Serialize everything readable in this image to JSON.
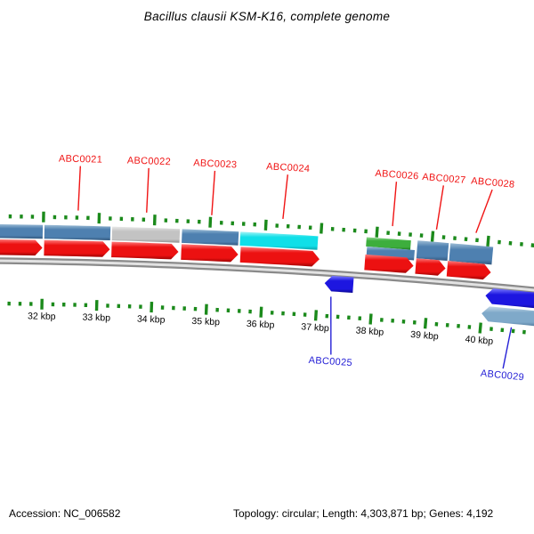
{
  "title": "Bacillus clausii KSM-K16, complete genome",
  "footer": {
    "accession": "Accession: NC_006582",
    "info": "Topology: circular; Length: 4,303,871 bp; Genes: 4,192"
  },
  "chart_data": {
    "type": "genome-map",
    "subtype": "circular-genome-arc-zoom",
    "accession": "NC_006582",
    "topology": "circular",
    "length_bp": 4303871,
    "genes_total": 4192,
    "visible_range_kbp": [
      31.23,
      40.9
    ],
    "ruler": {
      "unit": "kbp",
      "major_positions_kbp": [
        32,
        33,
        34,
        35,
        36,
        37,
        38,
        39,
        40
      ],
      "major_labels": [
        "32 kbp",
        "33 kbp",
        "34 kbp",
        "35 kbp",
        "36 kbp",
        "37 kbp",
        "38 kbp",
        "39 kbp",
        "40 kbp"
      ],
      "minor_interval_kbp": 0.2,
      "minor_start_kbp": 31.4,
      "minor_end_kbp": 40.8
    },
    "colors": {
      "background": "#ffffff",
      "tick": "#1b8a1b",
      "scale_text": "#000000",
      "label_top": "#f01414",
      "label_bottom": "#2621d6",
      "backbone_outer": "#8a8a8a",
      "backbone_core": "#e2e2e2",
      "features": {
        "steel": {
          "light": "#9dbdd6",
          "base": "#4e80b0",
          "dark": "#33587e"
        },
        "steelLight": {
          "light": "#c3d8e8",
          "base": "#7fa9c9",
          "dark": "#50799c"
        },
        "gray": {
          "light": "#e9e9e9",
          "base": "#c3c3c3",
          "dark": "#8f8f8f"
        },
        "cyan": {
          "light": "#a8f4f6",
          "base": "#10dfe8",
          "dark": "#0aa4ac"
        },
        "green": {
          "light": "#90d890",
          "base": "#3dae3d",
          "dark": "#1e7c1e"
        },
        "red": {
          "light": "#ff7a7a",
          "base": "#ec1111",
          "dark": "#9c0303"
        },
        "blue": {
          "light": "#7a7aff",
          "base": "#1d16e0",
          "dark": "#0a0690"
        }
      }
    },
    "features": [
      {
        "ring": "fwd-cat",
        "shape": "rect",
        "color": "steel",
        "start_kbp": 31.0,
        "end_kbp": 31.99
      },
      {
        "ring": "fwd-cat",
        "shape": "rect",
        "color": "steel",
        "start_kbp": 32.02,
        "end_kbp": 33.21,
        "name": "ABC0021"
      },
      {
        "ring": "fwd-cat",
        "shape": "rect",
        "color": "gray",
        "start_kbp": 33.24,
        "end_kbp": 34.46,
        "name": "ABC0022"
      },
      {
        "ring": "fwd-cat",
        "shape": "rect",
        "color": "steel",
        "start_kbp": 34.5,
        "end_kbp": 35.52,
        "name": "ABC0023"
      },
      {
        "ring": "fwd-cat",
        "shape": "rect",
        "color": "cyan",
        "start_kbp": 35.55,
        "end_kbp": 36.95,
        "name": "ABC0024"
      },
      {
        "ring": "fwd-cat-outer",
        "shape": "rect",
        "color": "green",
        "start_kbp": 37.82,
        "end_kbp": 38.62,
        "name": "ABC0026"
      },
      {
        "ring": "fwd-cat-inner",
        "shape": "rect",
        "color": "steel",
        "start_kbp": 37.84,
        "end_kbp": 38.7
      },
      {
        "ring": "fwd-cat-tall",
        "shape": "rect",
        "color": "steel",
        "start_kbp": 38.74,
        "end_kbp": 39.3,
        "name": "ABC0027"
      },
      {
        "ring": "fwd-cat-tall",
        "shape": "rect",
        "color": "steel",
        "start_kbp": 39.33,
        "end_kbp": 40.1,
        "name": "ABC0028"
      },
      {
        "ring": "fwd-cds",
        "shape": "arrow-right",
        "color": "red",
        "start_kbp": 31.0,
        "end_kbp": 31.99
      },
      {
        "ring": "fwd-cds",
        "shape": "arrow-right",
        "color": "red",
        "start_kbp": 32.02,
        "end_kbp": 33.21,
        "name": "ABC0021"
      },
      {
        "ring": "fwd-cds",
        "shape": "arrow-right",
        "color": "red",
        "start_kbp": 33.24,
        "end_kbp": 34.45,
        "name": "ABC0022"
      },
      {
        "ring": "fwd-cds",
        "shape": "arrow-right",
        "color": "red",
        "start_kbp": 34.5,
        "end_kbp": 35.53,
        "name": "ABC0023"
      },
      {
        "ring": "fwd-cds",
        "shape": "arrow-right",
        "color": "red",
        "start_kbp": 35.57,
        "end_kbp": 37.0,
        "name": "ABC0024"
      },
      {
        "ring": "fwd-cds",
        "shape": "arrow-right",
        "color": "red",
        "start_kbp": 37.82,
        "end_kbp": 38.7,
        "name": "ABC0026"
      },
      {
        "ring": "fwd-cds",
        "shape": "arrow-right",
        "color": "red",
        "start_kbp": 38.74,
        "end_kbp": 39.28,
        "name": "ABC0027"
      },
      {
        "ring": "fwd-cds",
        "shape": "arrow-right",
        "color": "red",
        "start_kbp": 39.31,
        "end_kbp": 40.1,
        "name": "ABC0028"
      },
      {
        "ring": "rev-cds",
        "shape": "arrow-left",
        "color": "blue",
        "start_kbp": 37.12,
        "end_kbp": 37.64,
        "name": "ABC0025"
      },
      {
        "ring": "rev-cds",
        "shape": "arrow-left",
        "color": "blue",
        "start_kbp": 40.04,
        "end_kbp": 41.1
      },
      {
        "ring": "rev-cat",
        "shape": "arrow-left",
        "color": "steelLight",
        "start_kbp": 40.0,
        "end_kbp": 41.1,
        "name": "ABC0029"
      }
    ],
    "labels": [
      {
        "text": "ABC0021",
        "side": "top",
        "ring": "fwd-cds",
        "anchor_kbp": 32.62,
        "label_kbp": 32.64
      },
      {
        "text": "ABC0022",
        "side": "top",
        "ring": "fwd-cds",
        "anchor_kbp": 33.85,
        "label_kbp": 33.86
      },
      {
        "text": "ABC0023",
        "side": "top",
        "ring": "fwd-cds",
        "anchor_kbp": 35.02,
        "label_kbp": 35.04
      },
      {
        "text": "ABC0024",
        "side": "top",
        "ring": "fwd-cds",
        "anchor_kbp": 36.3,
        "label_kbp": 36.34
      },
      {
        "text": "ABC0026",
        "side": "top",
        "ring": "fwd-cds",
        "anchor_kbp": 38.27,
        "label_kbp": 38.28
      },
      {
        "text": "ABC0027",
        "side": "top",
        "ring": "fwd-cds",
        "anchor_kbp": 39.06,
        "label_kbp": 39.12
      },
      {
        "text": "ABC0028",
        "side": "top",
        "ring": "fwd-cds",
        "anchor_kbp": 39.77,
        "label_kbp": 39.99
      },
      {
        "text": "ABC0025",
        "side": "bottom",
        "ring": "rev-cds",
        "anchor_kbp": 37.25,
        "label_kbp": 37.32
      },
      {
        "text": "ABC0029",
        "side": "bottom",
        "ring": "rev-cat",
        "anchor_kbp": 40.56,
        "label_kbp": 40.48
      }
    ]
  }
}
